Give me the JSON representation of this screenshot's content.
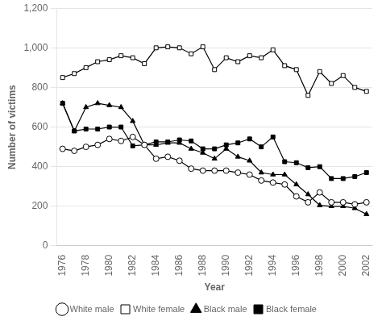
{
  "chart_data": {
    "type": "line",
    "x_label": "Year",
    "y_label": "Number of victims",
    "x": [
      1976,
      1977,
      1978,
      1979,
      1980,
      1981,
      1982,
      1983,
      1984,
      1985,
      1986,
      1987,
      1988,
      1989,
      1990,
      1991,
      1992,
      1993,
      1994,
      1995,
      1996,
      1997,
      1998,
      1999,
      2000,
      2001,
      2002
    ],
    "series": [
      {
        "name": "White male",
        "color": "#000000",
        "marker": "circle-open",
        "values": [
          490,
          480,
          500,
          510,
          540,
          530,
          550,
          510,
          440,
          450,
          430,
          390,
          380,
          380,
          380,
          370,
          360,
          330,
          320,
          310,
          250,
          220,
          270,
          220,
          220,
          210,
          220
        ]
      },
      {
        "name": "White female",
        "color": "#000000",
        "marker": "square-open",
        "values": [
          850,
          870,
          900,
          930,
          940,
          960,
          950,
          920,
          1000,
          1005,
          1000,
          970,
          1005,
          890,
          950,
          930,
          960,
          950,
          990,
          910,
          890,
          760,
          880,
          820,
          860,
          800,
          780
        ]
      },
      {
        "name": "Black male",
        "color": "#000000",
        "marker": "triangle",
        "values": [
          720,
          580,
          700,
          720,
          710,
          700,
          630,
          510,
          510,
          520,
          520,
          490,
          470,
          440,
          490,
          450,
          430,
          370,
          360,
          360,
          310,
          260,
          205,
          200,
          200,
          190,
          160
        ]
      },
      {
        "name": "Black female",
        "color": "#000000",
        "marker": "square",
        "values": [
          720,
          580,
          590,
          590,
          600,
          600,
          505,
          510,
          525,
          525,
          535,
          530,
          490,
          490,
          510,
          520,
          540,
          500,
          550,
          425,
          420,
          395,
          400,
          340,
          340,
          350,
          370
        ]
      }
    ],
    "xlim": [
      1975.5,
      2002.5
    ],
    "xticks": [
      1976,
      1978,
      1980,
      1982,
      1984,
      1986,
      1988,
      1990,
      1992,
      1994,
      1996,
      1998,
      2000,
      2002
    ],
    "ylim": [
      0,
      1200
    ],
    "yticks": [
      0,
      200,
      400,
      600,
      800,
      {
        "value": 1000,
        "label": "1,000"
      },
      {
        "value": 1200,
        "label": "1,200"
      }
    ],
    "grid": "y",
    "legend": "bottom"
  }
}
